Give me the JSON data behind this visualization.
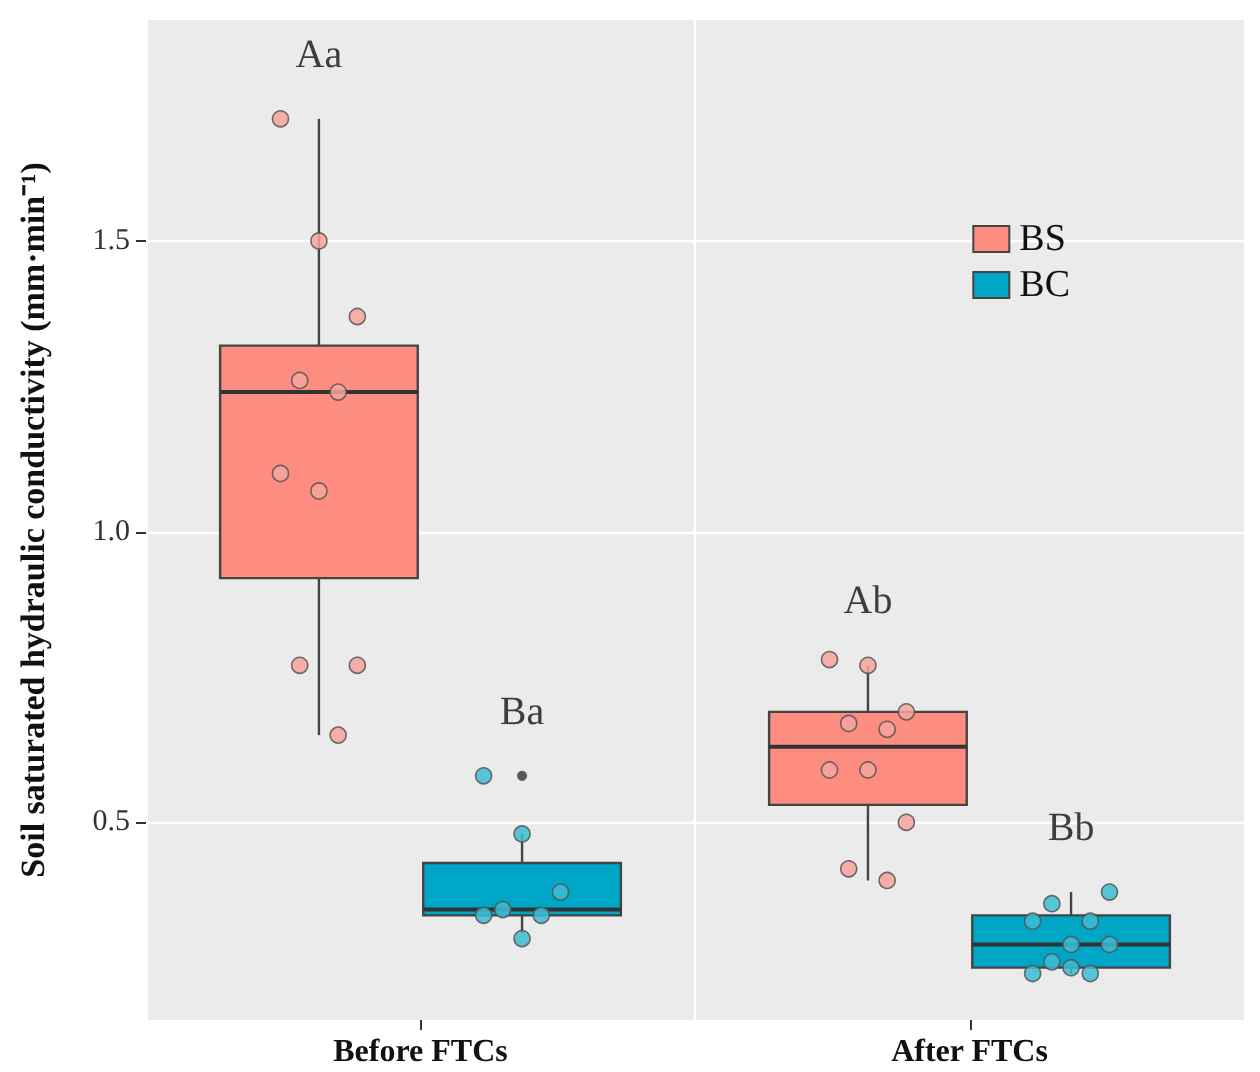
{
  "chart_data": {
    "type": "box",
    "ylabel": "Soil saturated hydraulic conductivity (mm·min⁻¹)",
    "categories": [
      "Before FTCs",
      "After FTCs"
    ],
    "ylim": [
      0.16,
      1.88
    ],
    "yticks": [
      {
        "value": 0.5,
        "label": "0.5"
      },
      {
        "value": 1.0,
        "label": "1.0"
      },
      {
        "value": 1.5,
        "label": "1.5"
      }
    ],
    "grid": true,
    "legend": "top right",
    "series": [
      {
        "name": "BS",
        "color": "#fc8d80",
        "boxes": [
          {
            "low": 0.65,
            "q1": 0.92,
            "median": 1.24,
            "q3": 1.32,
            "high": 1.71
          },
          {
            "low": 0.4,
            "q1": 0.53,
            "median": 0.63,
            "q3": 0.69,
            "high": 0.77
          }
        ]
      },
      {
        "name": "BC",
        "color": "#00a6c6",
        "boxes": [
          {
            "low": 0.31,
            "q1": 0.34,
            "median": 0.35,
            "q3": 0.43,
            "high": 0.48,
            "outliers": [
              0.58
            ]
          },
          {
            "low": 0.24,
            "q1": 0.25,
            "median": 0.29,
            "q3": 0.34,
            "high": 0.38
          }
        ]
      },
      {
        "type": "scatter",
        "color": "#f7a49c",
        "x": [
          "Before FTCs",
          "Before FTCs",
          "Before FTCs",
          "Before FTCs",
          "Before FTCs",
          "Before FTCs",
          "Before FTCs",
          "Before FTCs",
          "Before FTCs",
          "Before FTCs",
          "After FTCs",
          "After FTCs",
          "After FTCs",
          "After FTCs",
          "After FTCs",
          "After FTCs",
          "After FTCs",
          "After FTCs",
          "After FTCs",
          "After FTCs"
        ],
        "values": [
          1.71,
          1.5,
          1.37,
          1.26,
          1.24,
          1.1,
          1.07,
          0.77,
          0.77,
          0.65,
          0.78,
          0.77,
          0.69,
          0.67,
          0.66,
          0.59,
          0.59,
          0.5,
          0.42,
          0.4
        ]
      },
      {
        "type": "scatter",
        "color": "#3cbcd2",
        "x": [
          "Before FTCs",
          "Before FTCs",
          "Before FTCs",
          "Before FTCs",
          "Before FTCs",
          "Before FTCs",
          "Before FTCs",
          "After FTCs",
          "After FTCs",
          "After FTCs",
          "After FTCs",
          "After FTCs",
          "After FTCs",
          "After FTCs",
          "After FTCs",
          "After FTCs",
          "After FTCs"
        ],
        "values": [
          0.58,
          0.48,
          0.38,
          0.35,
          0.34,
          0.34,
          0.3,
          0.38,
          0.36,
          0.33,
          0.33,
          0.29,
          0.29,
          0.26,
          0.24,
          0.24,
          0.25
        ]
      }
    ],
    "annotations": [
      "Aa",
      "Ba",
      "Ab",
      "Bb"
    ]
  }
}
